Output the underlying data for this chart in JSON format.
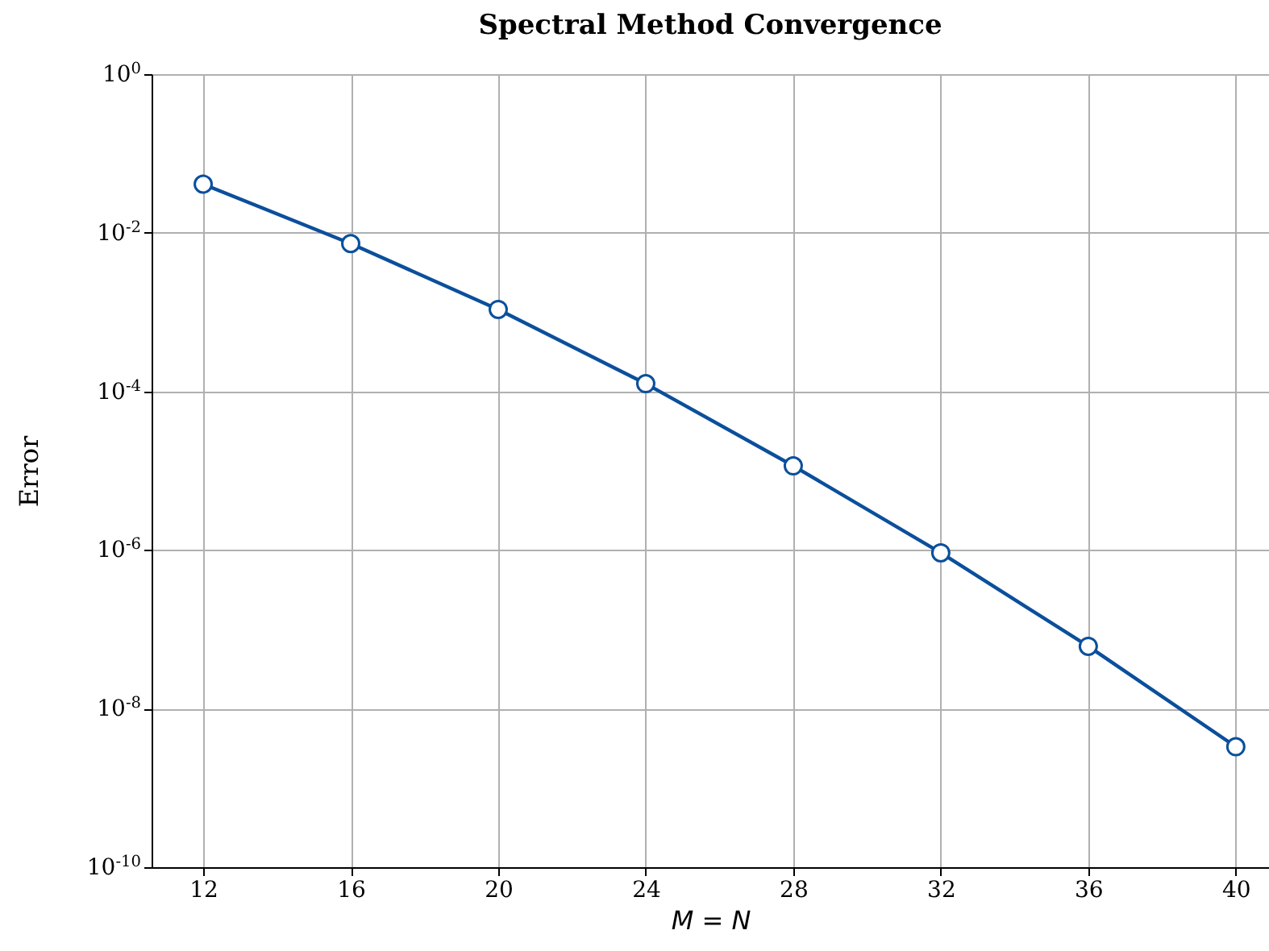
{
  "chart_data": {
    "type": "line",
    "title": "Spectral Method Convergence",
    "xlabel": "M = N",
    "ylabel": "Error",
    "x": [
      12,
      16,
      20,
      24,
      28,
      32,
      36,
      40
    ],
    "series": [
      {
        "color": "#0b4f9c",
        "values": [
          0.041,
          0.0073,
          0.00108,
          0.000125,
          1.15e-05,
          9.2e-07,
          6.1e-08,
          3.3e-09
        ]
      }
    ],
    "xlim": [
      10.6,
      40.9
    ],
    "xticks": [
      12,
      16,
      20,
      24,
      28,
      32,
      36,
      40
    ],
    "ylim": [
      1e-10,
      1
    ],
    "yticks": [
      {
        "value": 1e-10,
        "label": "10$^{-10}$"
      },
      {
        "value": 1e-08,
        "label": "10$^{-8}$"
      },
      {
        "value": 1e-06,
        "label": "10$^{-6}$"
      },
      {
        "value": 0.0001,
        "label": "10$^{-4}$"
      },
      {
        "value": 0.01,
        "label": "10$^{-2}$"
      },
      {
        "value": 1,
        "label": "10$^{0}$"
      }
    ],
    "log": "y",
    "grid": true,
    "marker": "circle",
    "line_style": "solid"
  }
}
